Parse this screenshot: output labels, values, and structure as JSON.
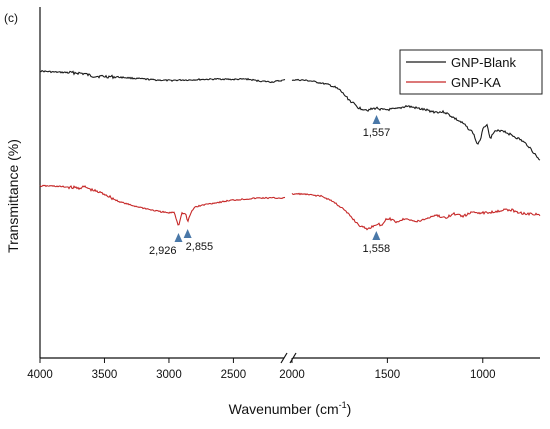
{
  "panel_label": "(c)",
  "chart_data": {
    "type": "line",
    "title": "",
    "xlabel": "Wavenumber (cm",
    "xlabel_superscript": "-1",
    "xlabel_suffix": ")",
    "ylabel": "Transmittance (%)",
    "x_axis": {
      "reversed": true,
      "broken": true,
      "break_between": [
        2100,
        2000
      ],
      "segments": [
        {
          "range": [
            4000,
            2100
          ],
          "ticks": [
            4000,
            3500,
            3000,
            2500
          ]
        },
        {
          "range": [
            2000,
            700
          ],
          "ticks": [
            2000,
            1500,
            1000
          ]
        }
      ]
    },
    "tick_labels": [
      "4000",
      "3500",
      "3000",
      "2500",
      "2000",
      "1500",
      "1000"
    ],
    "y_ticks_visible": false,
    "grid": false,
    "legend_position": "top-right",
    "series": [
      {
        "name": "GNP-Blank",
        "color": "#1a1a1a",
        "points": [
          [
            4000,
            71
          ],
          [
            3900,
            72
          ],
          [
            3800,
            72.5
          ],
          [
            3700,
            73
          ],
          [
            3650,
            74
          ],
          [
            3600,
            76
          ],
          [
            3500,
            76.5
          ],
          [
            3400,
            77
          ],
          [
            3300,
            78
          ],
          [
            3200,
            79
          ],
          [
            3100,
            80
          ],
          [
            3000,
            80.5
          ],
          [
            2900,
            80
          ],
          [
            2850,
            80
          ],
          [
            2750,
            79.5
          ],
          [
            2600,
            79
          ],
          [
            2500,
            79.5
          ],
          [
            2400,
            79
          ],
          [
            2300,
            81
          ],
          [
            2200,
            82
          ],
          [
            2100,
            80
          ],
          [
            2000,
            80
          ],
          [
            1950,
            80
          ],
          [
            1900,
            81
          ],
          [
            1850,
            83
          ],
          [
            1800,
            85
          ],
          [
            1750,
            90
          ],
          [
            1700,
            100
          ],
          [
            1650,
            108
          ],
          [
            1600,
            110
          ],
          [
            1557,
            108
          ],
          [
            1520,
            110
          ],
          [
            1450,
            109
          ],
          [
            1400,
            106
          ],
          [
            1350,
            108
          ],
          [
            1300,
            110
          ],
          [
            1250,
            112
          ],
          [
            1200,
            112
          ],
          [
            1150,
            118
          ],
          [
            1100,
            124
          ],
          [
            1050,
            133
          ],
          [
            1030,
            144
          ],
          [
            1015,
            142
          ],
          [
            1000,
            128
          ],
          [
            980,
            124
          ],
          [
            960,
            138
          ],
          [
            940,
            132
          ],
          [
            900,
            130
          ],
          [
            850,
            135
          ],
          [
            800,
            140
          ],
          [
            760,
            146
          ],
          [
            720,
            156
          ],
          [
            700,
            160
          ]
        ]
      },
      {
        "name": "GNP-KA",
        "color": "#c62828",
        "points": [
          [
            4000,
            186
          ],
          [
            3900,
            186
          ],
          [
            3800,
            187
          ],
          [
            3700,
            188
          ],
          [
            3650,
            187
          ],
          [
            3600,
            190
          ],
          [
            3500,
            194
          ],
          [
            3400,
            201
          ],
          [
            3300,
            205
          ],
          [
            3200,
            208
          ],
          [
            3100,
            211
          ],
          [
            3000,
            213
          ],
          [
            2960,
            212
          ],
          [
            2926,
            226
          ],
          [
            2900,
            213
          ],
          [
            2870,
            214
          ],
          [
            2855,
            222
          ],
          [
            2830,
            213
          ],
          [
            2800,
            207
          ],
          [
            2700,
            204
          ],
          [
            2600,
            202
          ],
          [
            2500,
            200
          ],
          [
            2400,
            199
          ],
          [
            2300,
            198
          ],
          [
            2200,
            198
          ],
          [
            2100,
            198
          ],
          [
            2000,
            194
          ],
          [
            1950,
            194
          ],
          [
            1900,
            195
          ],
          [
            1850,
            196
          ],
          [
            1800,
            200
          ],
          [
            1750,
            206
          ],
          [
            1700,
            215
          ],
          [
            1650,
            225
          ],
          [
            1620,
            228
          ],
          [
            1600,
            229
          ],
          [
            1558,
            224
          ],
          [
            1530,
            225
          ],
          [
            1500,
            218
          ],
          [
            1450,
            222
          ],
          [
            1400,
            218
          ],
          [
            1350,
            222
          ],
          [
            1300,
            219
          ],
          [
            1250,
            215
          ],
          [
            1200,
            218
          ],
          [
            1150,
            214
          ],
          [
            1100,
            216
          ],
          [
            1050,
            212
          ],
          [
            1000,
            213
          ],
          [
            950,
            212
          ],
          [
            900,
            210
          ],
          [
            850,
            210
          ],
          [
            800,
            213
          ],
          [
            750,
            214
          ],
          [
            700,
            215
          ]
        ]
      }
    ],
    "annotations": [
      {
        "label": "1,557",
        "x": 1557,
        "series": "GNP-Blank"
      },
      {
        "label": "2,926",
        "x": 2926,
        "series": "GNP-KA"
      },
      {
        "label": "2,855",
        "x": 2855,
        "series": "GNP-KA"
      },
      {
        "label": "1,558",
        "x": 1558,
        "series": "GNP-KA"
      }
    ],
    "marker_color": "#4a78a8"
  }
}
